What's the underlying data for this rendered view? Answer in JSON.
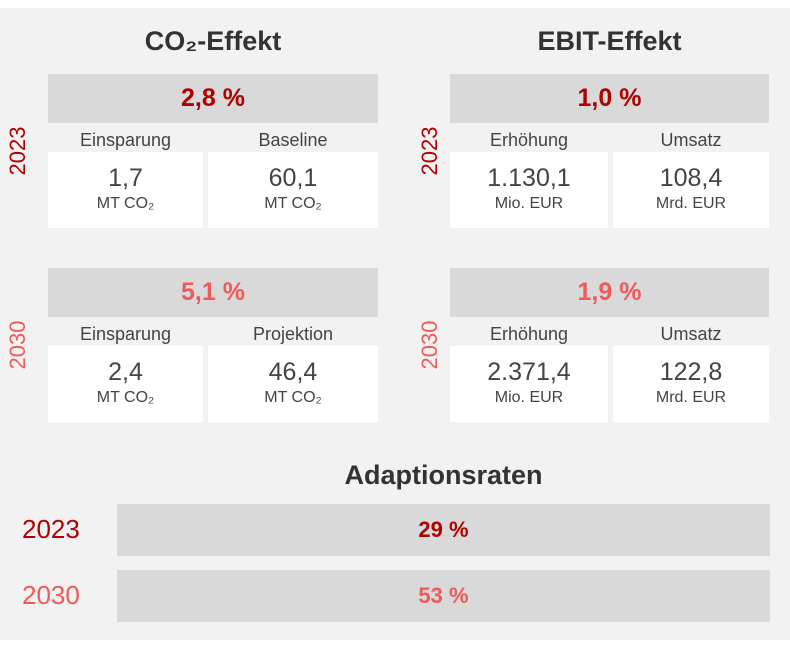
{
  "co2": {
    "title": "CO₂-Effekt",
    "blocks": [
      {
        "year": "2023",
        "headline": "2,8 %",
        "items": [
          {
            "label": "Einsparung",
            "value": "1,7",
            "unit": "MT CO₂"
          },
          {
            "label": "Baseline",
            "value": "60,1",
            "unit": "MT CO₂"
          }
        ]
      },
      {
        "year": "2030",
        "headline": "5,1 %",
        "items": [
          {
            "label": "Einsparung",
            "value": "2,4",
            "unit": "MT CO₂"
          },
          {
            "label": "Projektion",
            "value": "46,4",
            "unit": "MT CO₂"
          }
        ]
      }
    ]
  },
  "ebit": {
    "title": "EBIT-Effekt",
    "blocks": [
      {
        "year": "2023",
        "headline": "1,0 %",
        "items": [
          {
            "label": "Erhöhung",
            "value": "1.130,1",
            "unit": "Mio. EUR"
          },
          {
            "label": "Umsatz",
            "value": "108,4",
            "unit": "Mrd. EUR"
          }
        ]
      },
      {
        "year": "2030",
        "headline": "1,9 %",
        "items": [
          {
            "label": "Erhöhung",
            "value": "2.371,4",
            "unit": "Mio. EUR"
          },
          {
            "label": "Umsatz",
            "value": "122,8",
            "unit": "Mrd. EUR"
          }
        ]
      }
    ]
  },
  "adoption": {
    "title": "Adaptionsraten",
    "rows": [
      {
        "year": "2023",
        "value": "29 %"
      },
      {
        "year": "2030",
        "value": "53 %"
      }
    ]
  }
}
